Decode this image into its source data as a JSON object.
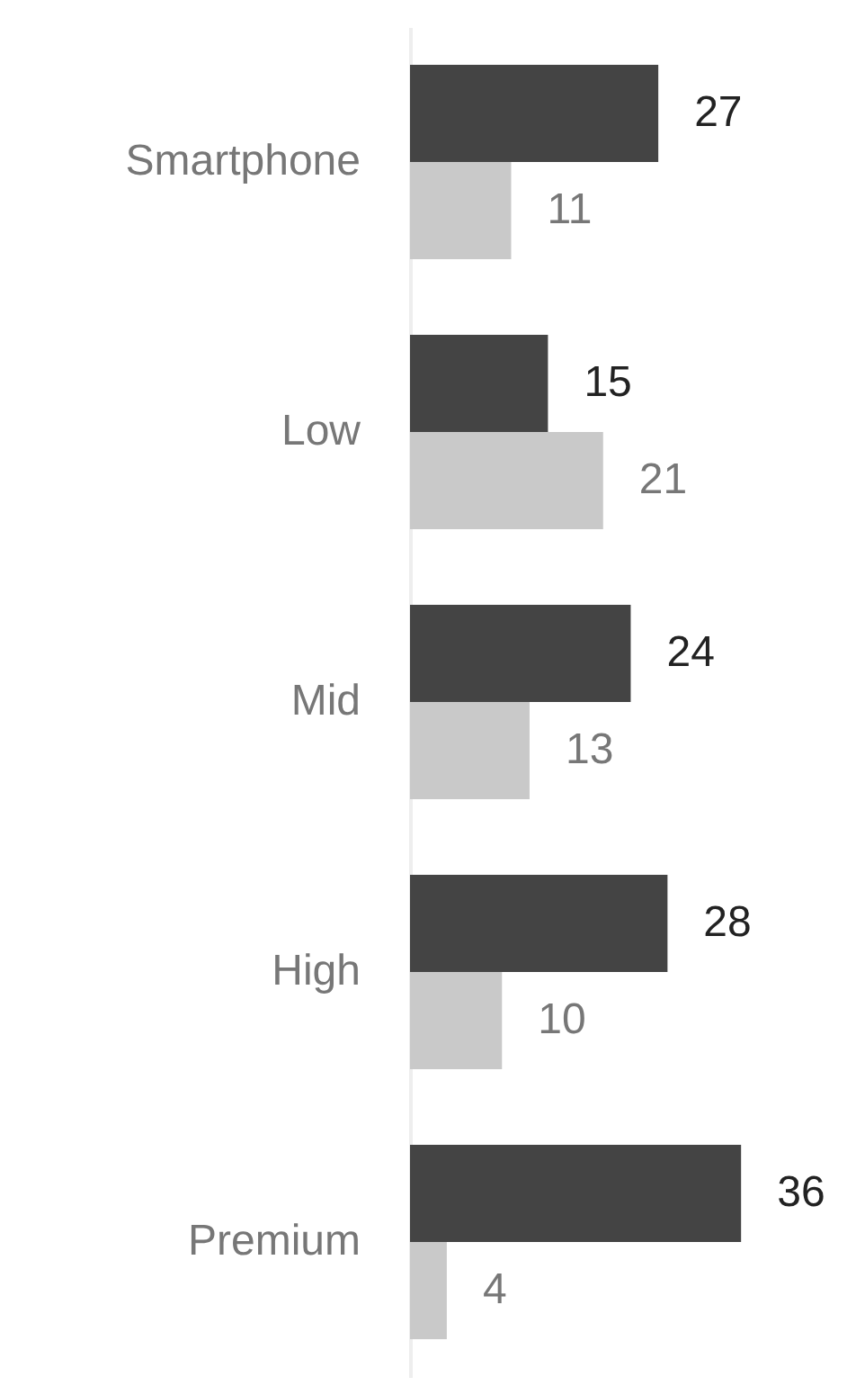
{
  "chart_data": {
    "type": "bar",
    "orientation": "horizontal",
    "categories": [
      "Smartphone",
      "Low",
      "Mid",
      "High",
      "Premium"
    ],
    "series": [
      {
        "color": "#444444",
        "values": [
          27,
          15,
          24,
          28,
          36
        ]
      },
      {
        "color": "#c9c9c9",
        "values": [
          11,
          21,
          13,
          10,
          4
        ]
      }
    ],
    "data_labels": true,
    "grid": false
  }
}
